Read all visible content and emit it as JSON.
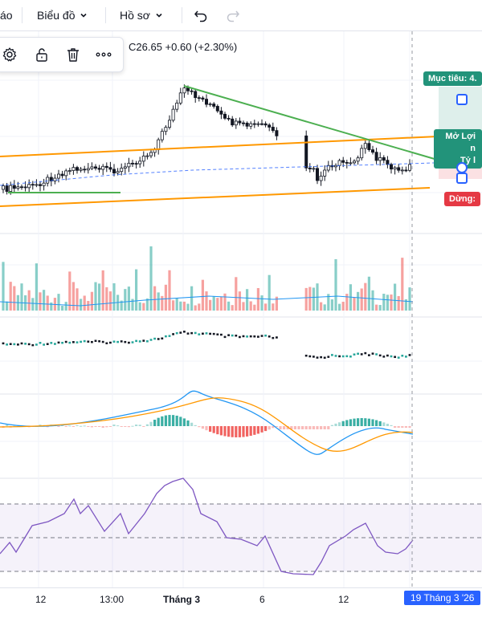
{
  "toolbar": {
    "partial_label": "áo",
    "chart_menu_label": "Biểu đồ",
    "profile_menu_label": "Hồ sơ"
  },
  "ohlc": {
    "close": "C26.65",
    "change": "+0.60 (+2.30%)"
  },
  "trade_tool": {
    "target_label": "Mục tiêu: 4.",
    "open_pnl_line1": "Mở Lợi n",
    "open_pnl_line2": "Tỷ l",
    "stop_label": "Dừng: "
  },
  "x_axis": {
    "labels": [
      "12",
      "13:00",
      "Tháng 3",
      "6",
      "12"
    ],
    "crosshair_date": "19 Tháng 3 '26"
  },
  "colors": {
    "up": "#26a69a",
    "down": "#ef5350",
    "trendline": "#4caf50",
    "channel": "#ff9800",
    "target": "#22937a",
    "stop": "#e53944",
    "rsi_line": "#7e57c2",
    "accent": "#2962ff"
  }
}
